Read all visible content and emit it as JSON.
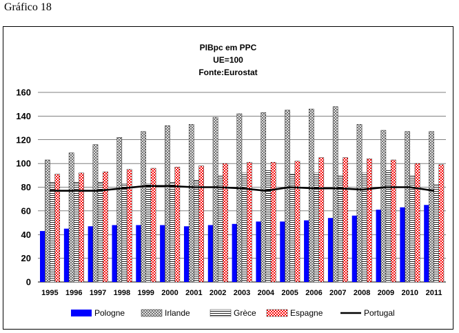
{
  "caption": "Gráfico 18",
  "chart_data": {
    "type": "bar",
    "title": [
      "PIBpc em PPC",
      "UE=100",
      "Fonte:Eurostat"
    ],
    "categories": [
      "1995",
      "1996",
      "1997",
      "1998",
      "1999",
      "2000",
      "2001",
      "2002",
      "2003",
      "2004",
      "2005",
      "2006",
      "2007",
      "2008",
      "2009",
      "2010",
      "2011"
    ],
    "ylim": [
      0,
      160
    ],
    "yticks": [
      0,
      20,
      40,
      60,
      80,
      100,
      120,
      140,
      160
    ],
    "grid": true,
    "legend_position": "bottom",
    "series": [
      {
        "name": "Pologne",
        "kind": "bar",
        "color": "#0000ff",
        "pattern": "solid",
        "values": [
          43,
          45,
          47,
          48,
          48,
          48,
          47,
          48,
          49,
          51,
          51,
          52,
          54,
          56,
          61,
          63,
          65
        ]
      },
      {
        "name": "Irlande",
        "kind": "bar",
        "color": "#808080",
        "pattern": "crosshatch",
        "values": [
          103,
          109,
          116,
          122,
          127,
          132,
          133,
          139,
          142,
          143,
          145,
          146,
          148,
          133,
          128,
          127,
          127
        ]
      },
      {
        "name": "Grèce",
        "kind": "bar",
        "color": "#000000",
        "pattern": "horizontal",
        "values": [
          84,
          84,
          84,
          83,
          83,
          84,
          86,
          90,
          92,
          94,
          91,
          92,
          90,
          92,
          94,
          90,
          82
        ]
      },
      {
        "name": "Espagne",
        "kind": "bar",
        "color": "#ff0000",
        "pattern": "checker",
        "values": [
          91,
          92,
          93,
          95,
          96,
          97,
          98,
          100,
          101,
          101,
          102,
          105,
          105,
          104,
          103,
          100,
          99
        ]
      },
      {
        "name": "Portugal",
        "kind": "line",
        "color": "#000000",
        "values": [
          77,
          77,
          77,
          79,
          81,
          81,
          80,
          80,
          79,
          77,
          80,
          79,
          79,
          78,
          80,
          80,
          77
        ]
      }
    ]
  }
}
